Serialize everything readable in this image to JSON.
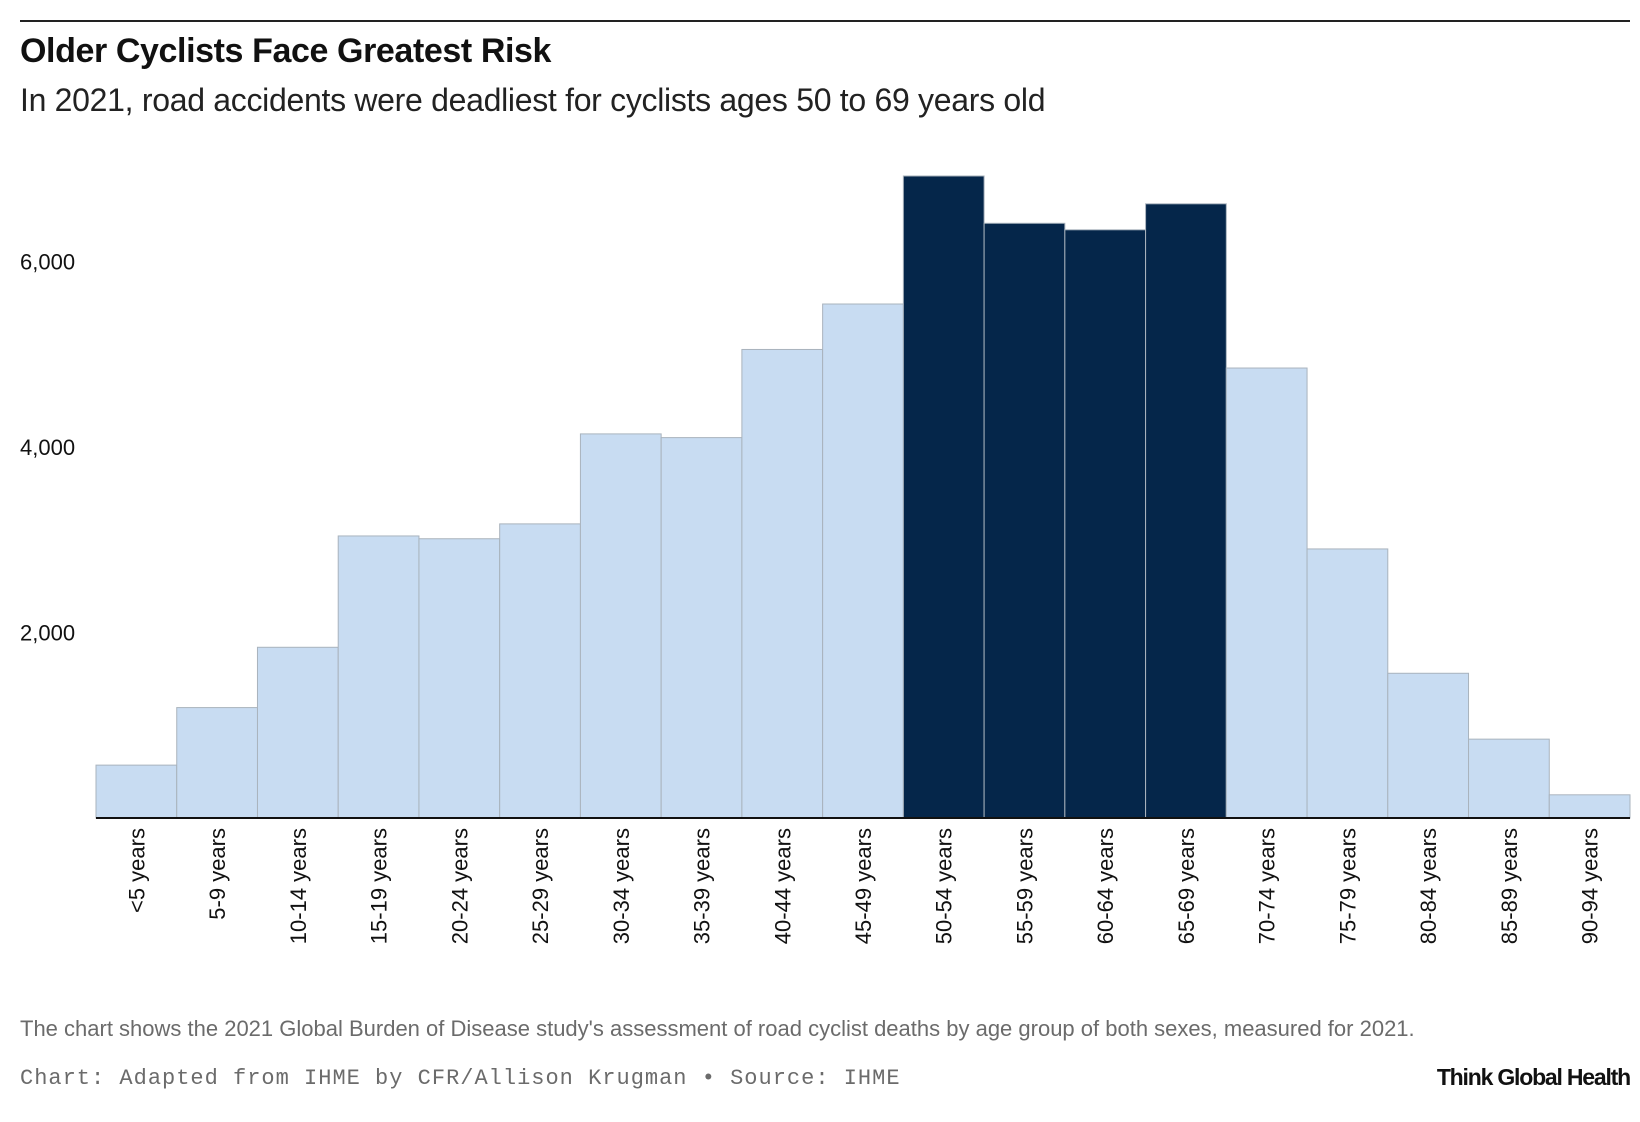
{
  "header": {
    "title": "Older Cyclists Face Greatest Risk",
    "subtitle": "In 2021, road accidents were deadliest for cyclists ages 50 to 69 years old"
  },
  "footer": {
    "note": "The chart shows the 2021 Global Burden of Disease study's assessment of road cyclist deaths by age group of both sexes, measured for 2021.",
    "credit": "Chart: Adapted from IHME by CFR/Allison Krugman • Source: IHME",
    "brand": "Think Global Health"
  },
  "colors": {
    "bar_default": "#c8dcf2",
    "bar_highlight": "#05264a",
    "bar_stroke": "#a9b3bd",
    "axis": "#111111"
  },
  "chart_data": {
    "type": "bar",
    "title": "Older Cyclists Face Greatest Risk",
    "subtitle": "In 2021, road accidents were deadliest for cyclists ages 50 to 69 years old",
    "xlabel": "",
    "ylabel": "",
    "ylim": [
      0,
      7200
    ],
    "yticks": [
      2000,
      4000,
      6000
    ],
    "ytick_labels": [
      "2,000",
      "4,000",
      "6,000"
    ],
    "grid": false,
    "categories": [
      "<5 years",
      "5-9 years",
      "10-14 years",
      "15-19 years",
      "20-24 years",
      "25-29 years",
      "30-34 years",
      "35-39 years",
      "40-44 years",
      "45-49 years",
      "50-54 years",
      "55-59 years",
      "60-64 years",
      "65-69 years",
      "70-74 years",
      "75-79 years",
      "80-84 years",
      "85-89 years",
      "90-94 years"
    ],
    "values": [
      570,
      1190,
      1840,
      3040,
      3010,
      3170,
      4140,
      4100,
      5050,
      5540,
      6920,
      6410,
      6340,
      6620,
      4850,
      2900,
      1560,
      850,
      250
    ],
    "highlighted": [
      false,
      false,
      false,
      false,
      false,
      false,
      false,
      false,
      false,
      false,
      true,
      true,
      true,
      true,
      false,
      false,
      false,
      false,
      false
    ]
  }
}
